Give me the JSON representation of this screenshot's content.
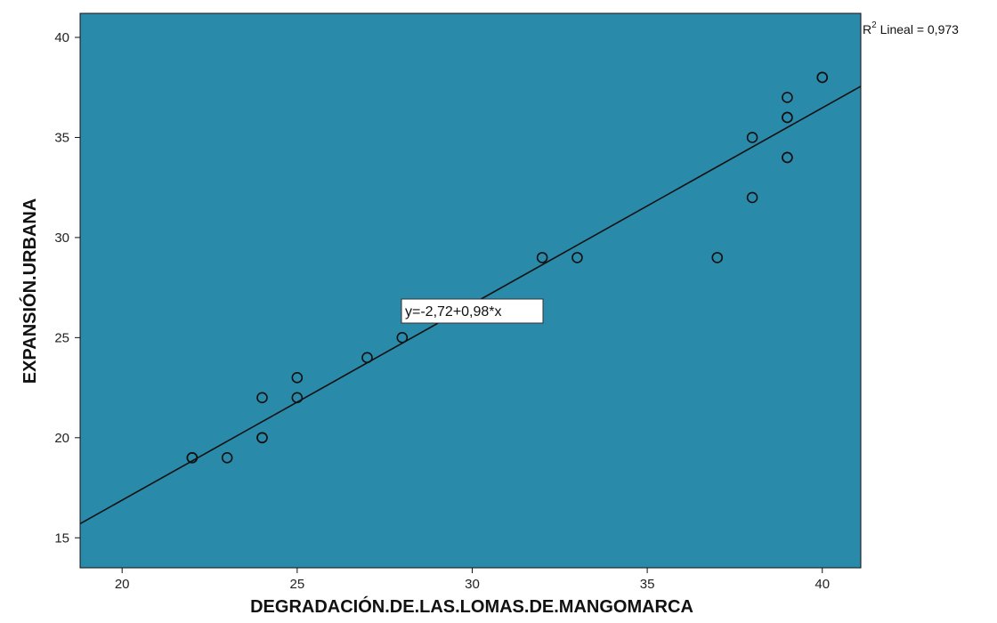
{
  "chart_data": {
    "type": "scatter",
    "title": "",
    "xlabel": "DEGRADACIÓN.DE.LAS.LOMAS.DE.MANGOMARCA",
    "ylabel": "EXPANSIÓN.URBANA",
    "xlim": [
      18.8,
      41.1
    ],
    "ylim": [
      13.5,
      41.2
    ],
    "x_ticks": [
      20,
      25,
      30,
      35,
      40
    ],
    "y_ticks": [
      15,
      20,
      25,
      30,
      35,
      40
    ],
    "grid": false,
    "colors": {
      "plot_background": "#2a8aaa",
      "marker": "#111111",
      "line": "#111111"
    },
    "points": [
      {
        "x": 22,
        "y": 19
      },
      {
        "x": 22,
        "y": 19
      },
      {
        "x": 23,
        "y": 19
      },
      {
        "x": 24,
        "y": 20
      },
      {
        "x": 24,
        "y": 20
      },
      {
        "x": 24,
        "y": 22
      },
      {
        "x": 25,
        "y": 22
      },
      {
        "x": 25,
        "y": 23
      },
      {
        "x": 27,
        "y": 24
      },
      {
        "x": 28,
        "y": 25
      },
      {
        "x": 31,
        "y": 26
      },
      {
        "x": 32,
        "y": 29
      },
      {
        "x": 33,
        "y": 29
      },
      {
        "x": 37,
        "y": 29
      },
      {
        "x": 38,
        "y": 32
      },
      {
        "x": 38,
        "y": 35
      },
      {
        "x": 39,
        "y": 34
      },
      {
        "x": 39,
        "y": 34
      },
      {
        "x": 39,
        "y": 36
      },
      {
        "x": 39,
        "y": 36
      },
      {
        "x": 39,
        "y": 37
      },
      {
        "x": 40,
        "y": 38
      },
      {
        "x": 40,
        "y": 38
      }
    ],
    "fit_line": {
      "intercept": -2.72,
      "slope": 0.98
    },
    "fit_equation_label": "y=-2,72+0,98*x",
    "r2_label": {
      "prefix": "R",
      "sup": "2",
      "text": " Lineal = 0,973"
    }
  }
}
